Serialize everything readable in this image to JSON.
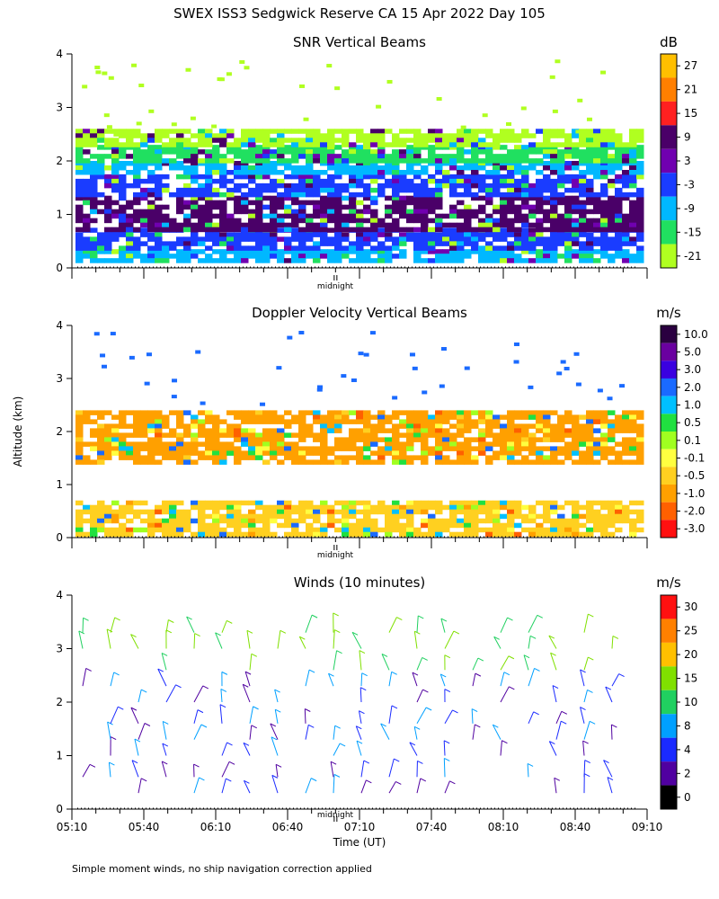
{
  "figure": {
    "title": "SWEX ISS3 Sedgwick Reserve CA  15 Apr 2022 Day 105",
    "ylabel": "Altitude (km)",
    "xlabel": "Time (UT)",
    "midnight_label": "midnight",
    "footnote": "Simple moment winds, no ship navigation correction applied"
  },
  "chart_data": [
    {
      "type": "heatmap",
      "title": "SNR Vertical Beams",
      "y_ticks": [
        "0",
        "1",
        "2",
        "3",
        "4"
      ],
      "ylim": [
        0,
        4
      ],
      "x_range_minutes_after_0510": [
        0,
        240
      ],
      "colorbar": {
        "unit": "dB",
        "labels": [
          "27",
          "21",
          "15",
          "9",
          "3",
          "-3",
          "-9",
          "-15",
          "-21"
        ],
        "colors": [
          "#ffbf00",
          "#ff7f00",
          "#ff2020",
          "#4a0068",
          "#7000b0",
          "#1a3cff",
          "#00b8ff",
          "#20e060",
          "#b0ff20"
        ]
      },
      "layers": [
        {
          "ymin": 0.15,
          "ymax": 0.35,
          "color": "#00b8ff"
        },
        {
          "ymin": 0.35,
          "ymax": 0.75,
          "color": "#1a3cff"
        },
        {
          "ymin": 0.75,
          "ymax": 1.35,
          "color": "#4a0068"
        },
        {
          "ymin": 1.35,
          "ymax": 1.75,
          "color": "#1a3cff"
        },
        {
          "ymin": 1.75,
          "ymax": 2.0,
          "color": "#00b8ff"
        },
        {
          "ymin": 2.0,
          "ymax": 2.3,
          "color": "#20e060"
        },
        {
          "ymin": 2.3,
          "ymax": 2.6,
          "color": "#b0ff20"
        }
      ]
    },
    {
      "type": "heatmap",
      "title": "Doppler Velocity Vertical Beams",
      "y_ticks": [
        "0",
        "1",
        "2",
        "3",
        "4"
      ],
      "ylim": [
        0,
        4
      ],
      "x_range_minutes_after_0510": [
        0,
        240
      ],
      "colorbar": {
        "unit": "m/s",
        "labels": [
          "10.0",
          "5.0",
          "3.0",
          "2.0",
          "1.0",
          "0.5",
          "0.1",
          "-0.1",
          "-0.5",
          "-1.0",
          "-2.0",
          "-3.0"
        ],
        "colors": [
          "#2a0040",
          "#6a00a0",
          "#3a00e0",
          "#1a6aff",
          "#00c0ff",
          "#20e040",
          "#a0ff20",
          "#ffff40",
          "#ffd020",
          "#ffa000",
          "#ff6000",
          "#ff1010"
        ]
      },
      "layers": [
        {
          "ymin": 0.1,
          "ymax": 0.7,
          "color": "#ffd020"
        },
        {
          "ymin": 1.4,
          "ymax": 2.4,
          "color": "#ffa000"
        }
      ]
    },
    {
      "type": "scatter",
      "title": "Winds (10 minutes)",
      "y_ticks": [
        "0",
        "1",
        "2",
        "3",
        "4"
      ],
      "ylim": [
        0,
        4
      ],
      "x_ticks": [
        "05:10",
        "05:40",
        "06:10",
        "06:40",
        "07:10",
        "07:40",
        "08:10",
        "08:40",
        "09:10"
      ],
      "x_range_minutes_after_0510": [
        0,
        240
      ],
      "colorbar": {
        "unit": "m/s",
        "labels": [
          "30",
          "25",
          "20",
          "15",
          "10",
          "8",
          "4",
          "2",
          "0"
        ],
        "colors": [
          "#ff1010",
          "#ff8000",
          "#ffc000",
          "#80e000",
          "#20d060",
          "#00a0ff",
          "#1a2aff",
          "#5000a0",
          "#000000"
        ]
      },
      "barb_columns": 20,
      "barb_levels_km": [
        0.3,
        0.6,
        1.0,
        1.3,
        1.6,
        2.0,
        2.3,
        2.6,
        3.0,
        3.3
      ]
    }
  ]
}
